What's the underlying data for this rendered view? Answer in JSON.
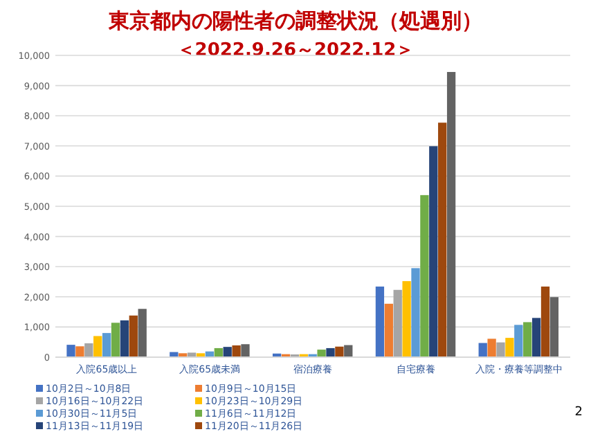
{
  "chart_data": {
    "type": "bar",
    "title": "東京都内の陽性者の調整状況（処遇別）",
    "subtitle": "＜2022.9.26～2022.12＞",
    "categories": [
      "入院65歳以上",
      "入院65歳未満",
      "宿泊療養",
      "自宅療養",
      "入院・療養等調整中"
    ],
    "series": [
      {
        "name": "10月2日～10月8日",
        "color": "#4472c4",
        "values": [
          410,
          170,
          120,
          2340,
          470
        ]
      },
      {
        "name": "10月9日～10月15日",
        "color": "#ed7d31",
        "values": [
          360,
          130,
          100,
          1770,
          610
        ]
      },
      {
        "name": "10月16日～10月22日",
        "color": "#a5a5a5",
        "values": [
          460,
          150,
          90,
          2230,
          490
        ]
      },
      {
        "name": "10月23日～10月29日",
        "color": "#ffc000",
        "values": [
          700,
          130,
          100,
          2520,
          640
        ]
      },
      {
        "name": "10月30日～11月5日",
        "color": "#5b9bd5",
        "values": [
          800,
          190,
          100,
          2950,
          1070
        ]
      },
      {
        "name": "11月6日～11月12日",
        "color": "#70ad47",
        "values": [
          1140,
          300,
          250,
          5370,
          1160
        ]
      },
      {
        "name": "11月13日～11月19日",
        "color": "#264478",
        "values": [
          1220,
          340,
          300,
          6990,
          1300
        ]
      },
      {
        "name": "11月20日～11月26日",
        "color": "#9e480e",
        "values": [
          1380,
          390,
          350,
          7770,
          2340
        ]
      },
      {
        "color": "#636363",
        "values": [
          1600,
          430,
          400,
          9450,
          1990
        ]
      }
    ],
    "ylim": [
      0,
      10000
    ],
    "yticks": [
      {
        "value": 0,
        "label": "0"
      },
      {
        "value": 1000,
        "label": "1,000"
      },
      {
        "value": 2000,
        "label": "2,000"
      },
      {
        "value": 3000,
        "label": "3,000"
      },
      {
        "value": 4000,
        "label": "4,000"
      },
      {
        "value": 5000,
        "label": "5,000"
      },
      {
        "value": 6000,
        "label": "6,000"
      },
      {
        "value": 7000,
        "label": "7,000"
      },
      {
        "value": 8000,
        "label": "8,000"
      },
      {
        "value": 9000,
        "label": "9,000"
      },
      {
        "value": 10000,
        "label": "10,000"
      }
    ],
    "grid": "y",
    "legend": "bottom",
    "annotations": [
      "2"
    ]
  }
}
